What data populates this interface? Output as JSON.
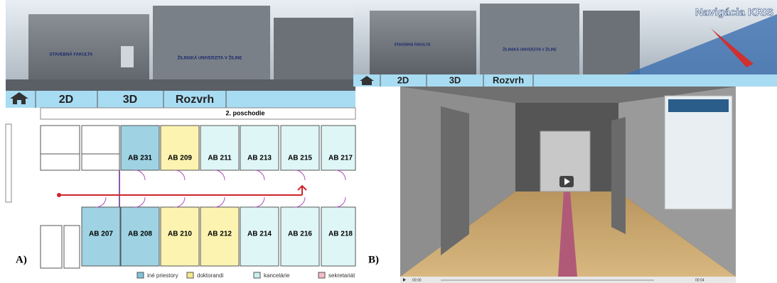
{
  "panel_a": {
    "label": "A)",
    "banner_texts": [
      "STAVEBNÁ FAKULTA",
      "ŽILINSKÁ UNIVERZITA V ŽILINE"
    ],
    "tabs": [
      "2D",
      "3D",
      "Rozvrh"
    ],
    "floor": "2. poschodie",
    "rooms_top": [
      "AB 231",
      "AB 209",
      "AB 211",
      "AB 213",
      "AB 215",
      "AB 217"
    ],
    "rooms_bottom": [
      "AB 207",
      "AB 208",
      "AB 210",
      "AB 212",
      "AB 214",
      "AB 216",
      "AB 218"
    ],
    "legend": [
      "iné priestory",
      "doktorandi",
      "kancelárie",
      "sekretariát"
    ]
  },
  "panel_b": {
    "label": "B)",
    "title": "Navigácia KRIS",
    "banner_texts": [
      "STAVEBNÁ FAKULTA",
      "ŽILINSKÁ UNIVERZITA V ŽILINE"
    ],
    "tabs": [
      "2D",
      "3D",
      "Rozvrh"
    ],
    "time_start": "00:00",
    "time_end": "00:04"
  }
}
